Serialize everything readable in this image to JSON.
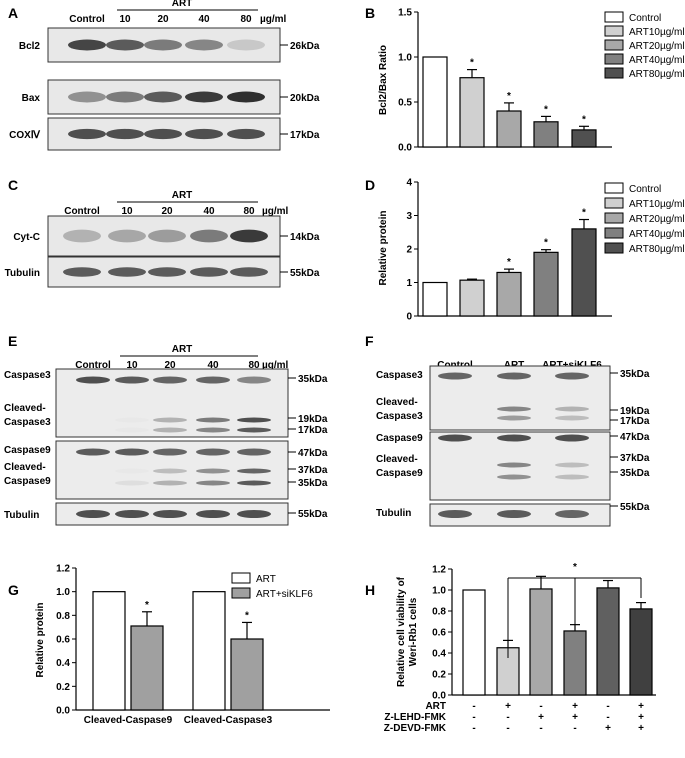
{
  "panel_labels": [
    "A",
    "B",
    "C",
    "D",
    "E",
    "F",
    "G",
    "H"
  ],
  "blot_A": {
    "header": {
      "art": "ART",
      "lanes": [
        "Control",
        "10",
        "20",
        "40",
        "80"
      ],
      "unit": "µg/ml"
    },
    "rows": [
      {
        "label": "Bcl2",
        "size": "26kDa",
        "int": [
          0.85,
          0.75,
          0.6,
          0.55,
          0.25
        ]
      },
      {
        "label": "Bax",
        "size": "20kDa",
        "int": [
          0.5,
          0.6,
          0.75,
          0.9,
          0.95
        ]
      },
      {
        "label": "COXⅣ",
        "size": "17kDa",
        "int": [
          0.8,
          0.8,
          0.8,
          0.8,
          0.8
        ]
      }
    ]
  },
  "blot_C": {
    "header": {
      "art": "ART",
      "lanes": [
        "Control",
        "10",
        "20",
        "40",
        "80"
      ],
      "unit": "µg/ml"
    },
    "rows": [
      {
        "label": "Cyt-C",
        "size": "14kDa",
        "int": [
          0.35,
          0.4,
          0.45,
          0.6,
          0.9
        ]
      },
      {
        "label": "Tubulin",
        "size": "55kDa",
        "int": [
          0.75,
          0.75,
          0.75,
          0.75,
          0.75
        ]
      }
    ]
  },
  "blot_E": {
    "header": {
      "art": "ART",
      "lanes": [
        "Control",
        "10",
        "20",
        "40",
        "80"
      ],
      "unit": "µg/ml"
    },
    "labels": {
      "casp3": "Caspase3",
      "cc3a": "Cleaved-",
      "cc3b": "Caspase3",
      "casp9": "Caspase9",
      "cc9a": "Cleaved-",
      "cc9b": "Caspase9",
      "tub": "Tubulin"
    },
    "sizes": [
      "35kDa",
      "19kDa",
      "17kDa",
      "47kDa",
      "37kDa",
      "35kDa",
      "55kDa"
    ]
  },
  "blot_F": {
    "header": {
      "lanes": [
        "Control",
        "ART",
        "ART+siKLF6"
      ]
    },
    "labels": {
      "casp3": "Caspase3",
      "cc3a": "Cleaved-",
      "cc3b": "Caspase3",
      "casp9": "Caspase9",
      "cc9a": "Cleaved-",
      "cc9b": "Caspase9",
      "tub": "Tubulin"
    },
    "sizes": [
      "35kDa",
      "19kDa",
      "17kDa",
      "47kDa",
      "37kDa",
      "35kDa",
      "55kDa"
    ]
  },
  "chart_data": [
    {
      "panel": "B",
      "type": "bar",
      "categories": [
        "Control",
        "ART10µg/ml",
        "ART20µg/ml",
        "ART40µg/ml",
        "ART80µg/ml"
      ],
      "values": [
        1.0,
        0.77,
        0.4,
        0.28,
        0.19
      ],
      "errors": [
        0,
        0.09,
        0.09,
        0.06,
        0.04
      ],
      "significant": [
        false,
        true,
        true,
        true,
        true
      ],
      "ylabel": "Bcl2/Bax Ratio",
      "ylim": [
        0,
        1.5
      ],
      "yticks": [
        "0.0",
        "0.5",
        "1.0",
        "1.5"
      ],
      "fills": [
        "#ffffff",
        "#d0d0d0",
        "#a8a8a8",
        "#808080",
        "#505050"
      ],
      "legend": [
        "Control",
        "ART10µg/ml",
        "ART20µg/ml",
        "ART40µg/ml",
        "ART80µg/ml"
      ]
    },
    {
      "panel": "D",
      "type": "bar",
      "categories": [
        "Control",
        "ART10µg/ml",
        "ART20µg/ml",
        "ART40µg/ml",
        "ART80µg/ml"
      ],
      "values": [
        1.0,
        1.07,
        1.3,
        1.9,
        2.6
      ],
      "errors": [
        0,
        0.03,
        0.1,
        0.08,
        0.28
      ],
      "significant": [
        false,
        false,
        true,
        true,
        true
      ],
      "ylabel": "Relative protein",
      "ylim": [
        0,
        4
      ],
      "yticks": [
        "0",
        "1",
        "2",
        "3",
        "4"
      ],
      "fills": [
        "#ffffff",
        "#d0d0d0",
        "#a8a8a8",
        "#808080",
        "#505050"
      ],
      "legend": [
        "Control",
        "ART10µg/ml",
        "ART20µg/ml",
        "ART40µg/ml",
        "ART80µg/ml"
      ]
    },
    {
      "panel": "G",
      "type": "bar",
      "categories": [
        "Cleaved-Caspase9",
        "Cleaved-Caspase3"
      ],
      "series": [
        {
          "name": "ART",
          "values": [
            1.0,
            1.0
          ],
          "errors": [
            0,
            0
          ],
          "significant": [
            false,
            false
          ],
          "fill": "#ffffff"
        },
        {
          "name": "ART+siKLF6",
          "values": [
            0.71,
            0.6
          ],
          "errors": [
            0.12,
            0.14
          ],
          "significant": [
            true,
            true
          ],
          "fill": "#a0a0a0"
        }
      ],
      "ylabel": "Relative protein",
      "ylim": [
        0,
        1.2
      ],
      "yticks": [
        "0.0",
        "0.2",
        "0.4",
        "0.6",
        "0.8",
        "1.0",
        "1.2"
      ]
    },
    {
      "panel": "H",
      "type": "bar",
      "values": [
        1.0,
        0.45,
        1.01,
        0.61,
        1.02,
        0.82
      ],
      "errors": [
        0,
        0.07,
        0.12,
        0.06,
        0.07,
        0.06
      ],
      "fills": [
        "#ffffff",
        "#d0d0d0",
        "#a8a8a8",
        "#808080",
        "#606060",
        "#404040"
      ],
      "ylabel": "Relative cell viability of Weri-Rb1 cells",
      "ylim": [
        0,
        1.2
      ],
      "yticks": [
        "0.0",
        "0.2",
        "0.4",
        "0.6",
        "0.8",
        "1.0",
        "1.2"
      ],
      "treatments": [
        {
          "name": "ART",
          "marks": [
            "-",
            "+",
            "-",
            "+",
            "-",
            "+"
          ]
        },
        {
          "name": "Z-LEHD-FMK",
          "marks": [
            "-",
            "-",
            "+",
            "+",
            "-",
            "+"
          ]
        },
        {
          "name": "Z-DEVD-FMK",
          "marks": [
            "-",
            "-",
            "-",
            "-",
            "+",
            "+"
          ]
        }
      ],
      "significance": "*"
    }
  ]
}
